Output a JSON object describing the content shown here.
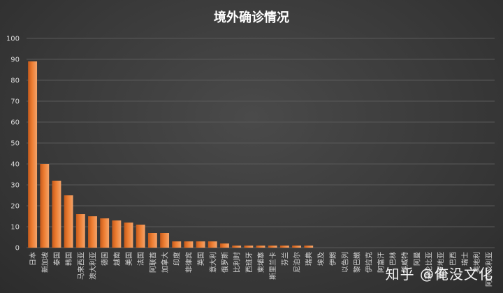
{
  "chart_data": {
    "type": "bar",
    "title": "境外确诊情况",
    "xlabel": "",
    "ylabel": "",
    "ylim": [
      0,
      100
    ],
    "yticks": [
      0,
      10,
      20,
      30,
      40,
      50,
      60,
      70,
      80,
      90,
      100
    ],
    "grid": true,
    "bar_color": "#ed7d31",
    "categories": [
      "日本",
      "新加坡",
      "泰国",
      "韩国",
      "马来西亚",
      "澳大利亚",
      "德国",
      "越南",
      "美国",
      "法国",
      "阿联酋",
      "加拿大",
      "印度",
      "菲律宾",
      "英国",
      "意大利",
      "俄罗斯",
      "比利时",
      "西班牙",
      "柬埔寨",
      "斯里兰卡",
      "芬兰",
      "尼泊尔",
      "瑞典",
      "埃及",
      "伊朗",
      "以色列",
      "黎巴嫩",
      "伊拉克",
      "阿富汗",
      "巴林",
      "科威特",
      "阿曼",
      "哥伦比亚",
      "克罗地亚",
      "巴西",
      "瑞士",
      "奥地利",
      "阿尔及利亚"
    ],
    "values": [
      89,
      40,
      32,
      25,
      16,
      15,
      14,
      13,
      12,
      11,
      7,
      7,
      3,
      3,
      3,
      3,
      2,
      1,
      1,
      1,
      1,
      1,
      1,
      1,
      0,
      0,
      0,
      0,
      0,
      0,
      0,
      0,
      0,
      0,
      0,
      0,
      0,
      0,
      0
    ]
  },
  "watermark": "知乎 @俺没文化"
}
